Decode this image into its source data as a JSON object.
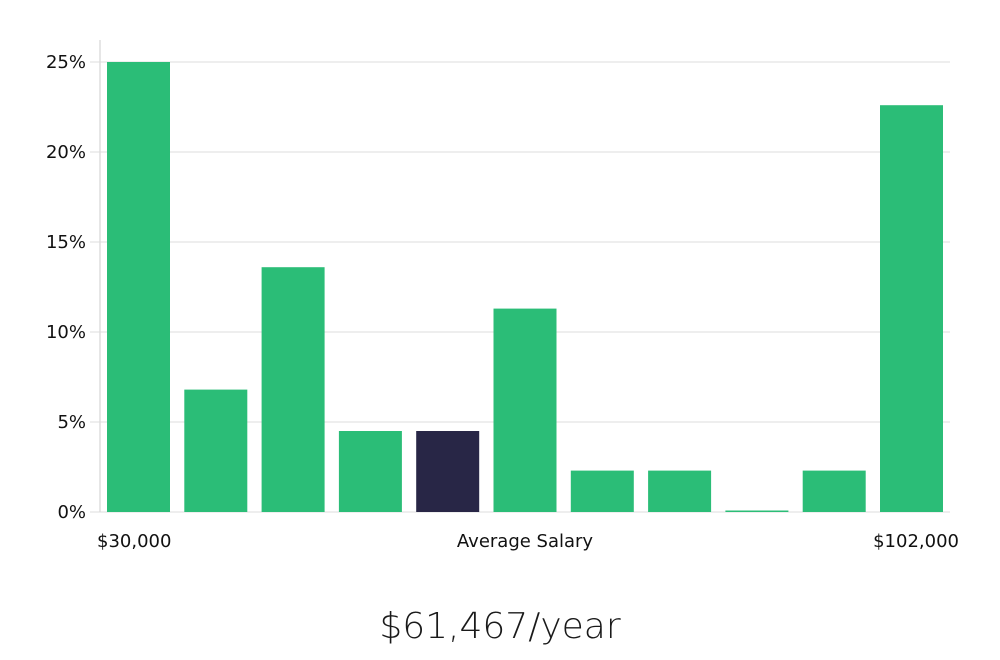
{
  "chart_data": {
    "type": "bar",
    "x_tick_labels": {
      "left": "$30,000",
      "center": "Average Salary",
      "right": "$102,000"
    },
    "y_tick_labels": [
      "0%",
      "5%",
      "10%",
      "15%",
      "20%",
      "25%"
    ],
    "y_ticks": [
      0,
      5,
      10,
      15,
      20,
      25
    ],
    "ylim": [
      0,
      26
    ],
    "values": [
      25.0,
      6.8,
      13.6,
      4.5,
      4.5,
      11.3,
      2.3,
      2.3,
      0.0,
      2.3,
      22.6
    ],
    "highlight_index": 4,
    "grid": true
  },
  "colors": {
    "bar": "#2bbd77",
    "highlight": "#282646",
    "grid": "#dddddd",
    "axis": "#cccccc"
  },
  "salary": {
    "value": "$61,467/year"
  }
}
